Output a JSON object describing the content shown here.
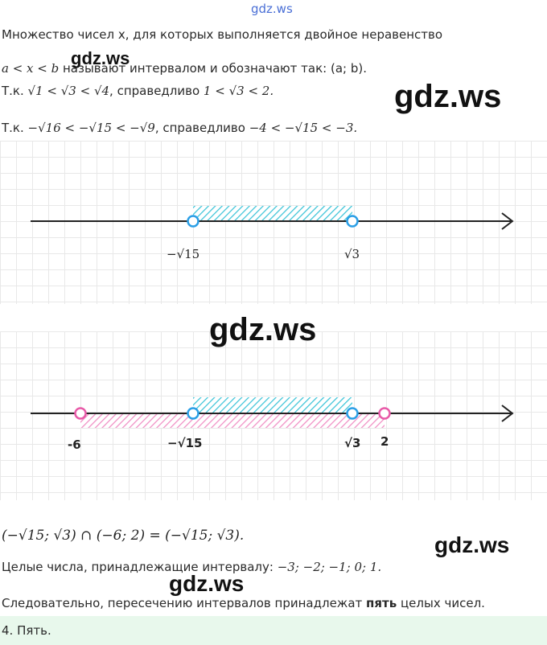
{
  "watermark_top": "gdz.ws",
  "watermarks": [
    "gdz.ws",
    "gdz.ws",
    "gdz.ws",
    "gdz.ws",
    "gdz.ws"
  ],
  "line1": "Множество чисел x, для которых выполняется двойное неравенство",
  "line2_math": "a < x < b",
  "line2_text": " называют интервалом и обозначают так: (a; b).",
  "line3_prefix": "Т.к. ",
  "line3_math": "√1 < √3 < √4",
  "line3_mid": ", справедливо ",
  "line3_math2": "1 < √3 < 2.",
  "line4_prefix": "Т.к. ",
  "line4_math": "−√16 < −√15 < −√9",
  "line4_mid": ", справедливо ",
  "line4_math2": "−4 < −√15 < −3.",
  "figure1": {
    "label_left": "−√15",
    "label_right": "√3"
  },
  "figure2": {
    "label_neg6": "-6",
    "label_left": "−√15",
    "label_right": "√3",
    "label_2": "2"
  },
  "intersection": "(−√15; √3) ∩ (−6; 2) = (−√15; √3).",
  "integers_text": "Целые числа, принадлежащие интервалу: ",
  "integers_values": "−3;  −2;  −1;  0;  1.",
  "conclusion_pre": "Следовательно, пересечению интервалов принадлежат ",
  "conclusion_bold": "пять",
  "conclusion_post": " целых чисел.",
  "answer": "4. Пять.",
  "colors": {
    "blue": "#2b9fe6",
    "pink": "#e85aa8",
    "hatch_blue": "#3cc4d8"
  }
}
